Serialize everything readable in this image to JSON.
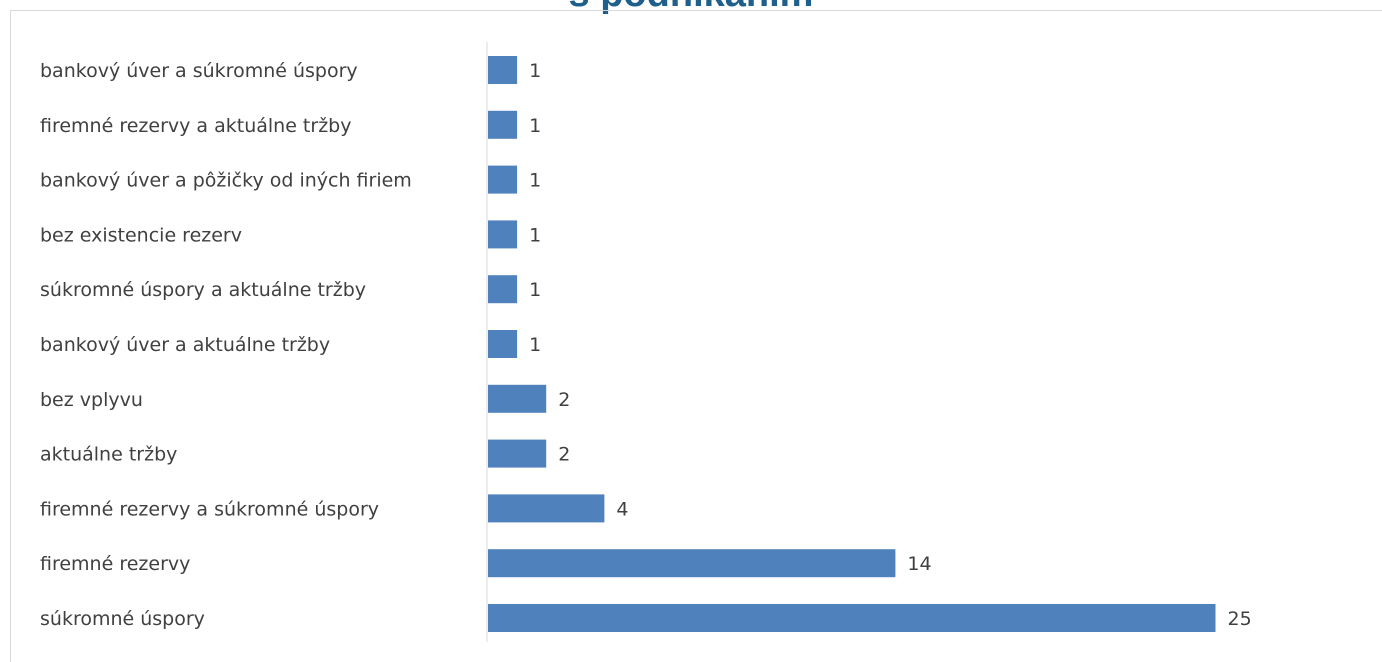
{
  "chart_data": {
    "type": "bar",
    "orientation": "horizontal",
    "title": "s podnikaním",
    "categories": [
      "bankový úver a súkromné úspory",
      "firemné rezervy a aktuálne tržby",
      "bankový úver a pôžičky od iných firiem",
      "bez existencie rezerv",
      "súkromné úspory a aktuálne tržby",
      "bankový úver a aktuálne tržby",
      "bez vplyvu",
      "aktuálne tržby",
      "firemné rezervy a súkromné úspory",
      "firemné rezervy",
      "súkromné úspory"
    ],
    "values": [
      1,
      1,
      1,
      1,
      1,
      1,
      2,
      2,
      4,
      14,
      25
    ],
    "xlim": [
      0,
      25
    ],
    "grid": false,
    "data_labels": true,
    "bar_color": "#4f81bd",
    "title_color": "#1f5f8b"
  }
}
